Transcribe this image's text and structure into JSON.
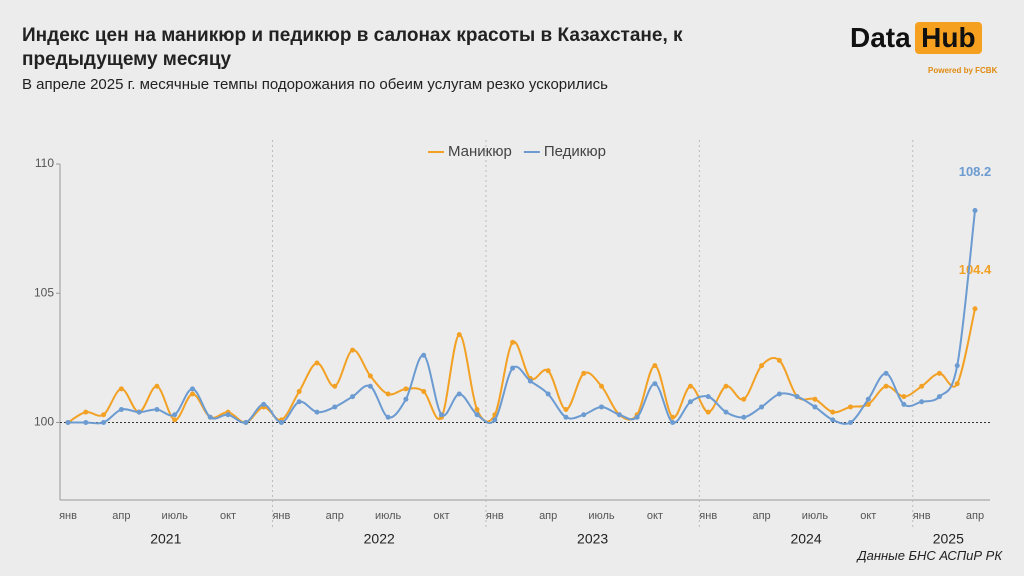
{
  "chart_data": {
    "type": "line",
    "title": "Индекс цен на маникюр и педикюр в салонах красоты в Казахстане, к предыдущему месяцу",
    "subtitle": "В апреле 2025 г. месячные темпы подорожания по обеим услугам резко ускорились",
    "source": "Данные БНС АСПиР РК",
    "categories": [
      "янв",
      null,
      null,
      "апр",
      null,
      null,
      "июль",
      null,
      null,
      "окт",
      null,
      null,
      "янв",
      null,
      null,
      "апр",
      null,
      null,
      "июль",
      null,
      null,
      "окт",
      null,
      null,
      "янв",
      null,
      null,
      "апр",
      null,
      null,
      "июль",
      null,
      null,
      "окт",
      null,
      null,
      "янв",
      null,
      null,
      "апр",
      null,
      null,
      "июль",
      null,
      null,
      "окт",
      null,
      null,
      "янв",
      null,
      null,
      "апр"
    ],
    "years": [
      "2021",
      "2022",
      "2023",
      "2024",
      "2025"
    ],
    "ylim": [
      97,
      110
    ],
    "yticks": [
      100,
      105,
      110
    ],
    "baseline": 100,
    "legend": "top",
    "series": [
      {
        "name": "Маникюр",
        "color": "#f2a124",
        "values": [
          100.0,
          100.4,
          100.3,
          101.3,
          100.4,
          101.4,
          100.1,
          101.1,
          100.2,
          100.4,
          100.0,
          100.6,
          100.1,
          101.2,
          102.3,
          101.4,
          102.8,
          101.8,
          101.1,
          101.3,
          101.2,
          100.2,
          103.4,
          100.5,
          100.3,
          103.1,
          101.7,
          102.0,
          100.5,
          101.9,
          101.4,
          100.3,
          100.3,
          102.2,
          100.2,
          101.4,
          100.4,
          101.4,
          100.9,
          102.2,
          102.4,
          101.0,
          100.9,
          100.4,
          100.6,
          100.7,
          101.4,
          101.0,
          101.4,
          101.9,
          101.5,
          104.4
        ]
      },
      {
        "name": "Педикюр",
        "color": "#6b9bd1",
        "values": [
          100.0,
          100.0,
          100.0,
          100.5,
          100.4,
          100.5,
          100.3,
          101.3,
          100.2,
          100.3,
          100.0,
          100.7,
          100.0,
          100.8,
          100.4,
          100.6,
          101.0,
          101.4,
          100.2,
          100.9,
          102.6,
          100.3,
          101.1,
          100.3,
          100.1,
          102.1,
          101.6,
          101.1,
          100.2,
          100.3,
          100.6,
          100.3,
          100.2,
          101.5,
          100.0,
          100.8,
          101.0,
          100.4,
          100.2,
          100.6,
          101.1,
          101.0,
          100.6,
          100.1,
          100.0,
          100.9,
          101.9,
          100.7,
          100.8,
          101.0,
          102.2,
          108.2
        ]
      }
    ]
  },
  "logo": {
    "word1": "Data",
    "word2": "Hub",
    "tagline": "Powered by FCBK"
  }
}
